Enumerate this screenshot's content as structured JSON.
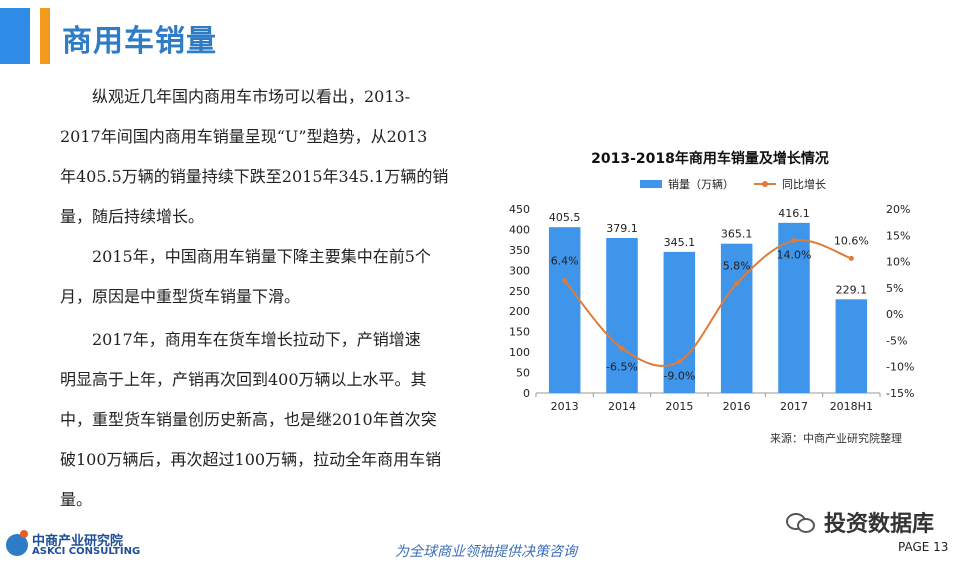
{
  "header": {
    "title": "商用车销量"
  },
  "body": {
    "p1_lines": [
      "纵观近几年国内商用车市场可以看出，2013-",
      "2017年间国内商用车销量呈现“U”型趋势，从2013",
      "年405.5万辆的销量持续下跌至2015年345.1万辆的销",
      "量，随后持续增长。"
    ],
    "p2_lines": [
      "2015年，中国商用车销量下降主要集中在前5个",
      "月，原因是中重型货车销量下滑。"
    ],
    "p3_lines": [
      "2017年，商用车在货车增长拉动下，产销增速",
      "明显高于上年，产销再次回到400万辆以上水平。其",
      "中，重型货车销量创历史新高，也是继2010年首次突",
      "破100万辆后，再次超过100万辆，拉动全年商用车销",
      "量。"
    ]
  },
  "chart_data": {
    "type": "bar",
    "title": "2013-2018年商用车销量及增长情况",
    "categories": [
      "2013",
      "2014",
      "2015",
      "2016",
      "2017",
      "2018H1"
    ],
    "series": [
      {
        "name": "销量（万辆）",
        "type": "bar",
        "axis": "left",
        "values": [
          405.5,
          379.1,
          345.1,
          365.1,
          416.1,
          229.1
        ],
        "labels": [
          "405.5",
          "379.1",
          "345.1",
          "365.1",
          "416.1",
          "229.1"
        ],
        "color": "#3E95EA"
      },
      {
        "name": "同比增长",
        "type": "line",
        "axis": "right",
        "values": [
          6.4,
          -6.5,
          -9.0,
          5.8,
          14.0,
          10.6
        ],
        "labels": [
          "6.4%",
          "-6.5%",
          "-9.0%",
          "5.8%",
          "14.0%",
          "10.6%"
        ],
        "color": "#E07B39"
      }
    ],
    "ylim_left": [
      0,
      450
    ],
    "yticks_left": [
      "0",
      "50",
      "100",
      "150",
      "200",
      "250",
      "300",
      "350",
      "400",
      "450"
    ],
    "ylim_right": [
      -15,
      20
    ],
    "yticks_right": [
      "-15%",
      "-10%",
      "-5%",
      "0%",
      "5%",
      "10%",
      "15%",
      "20%"
    ],
    "grid": false,
    "legend_position": "top"
  },
  "source": "来源：中商产业研究院整理",
  "footer": {
    "logo_cn": "中商产业研究院",
    "logo_en": "ASKCI CONSULTING",
    "slogan": "为全球商业领袖提供决策咨询",
    "wechat": "投资数据库",
    "page": "PAGE 13"
  }
}
